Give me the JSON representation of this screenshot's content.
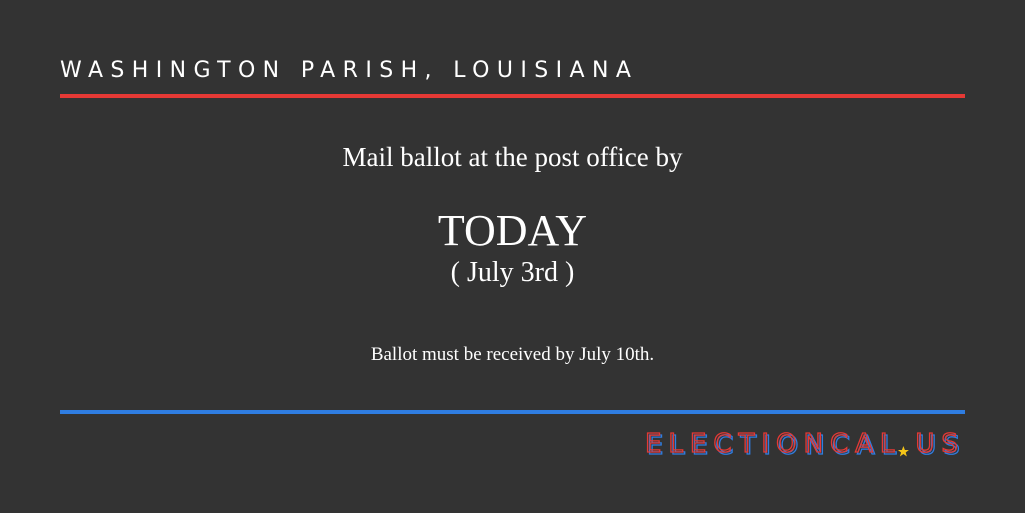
{
  "header": {
    "title": "WASHINGTON PARISH, LOUISIANA"
  },
  "message": {
    "lead": "Mail ballot at the post office by",
    "deadline": "TODAY",
    "date": "( July 3rd )",
    "note": "Ballot must be received by July 10th."
  },
  "footer": {
    "logo_main": "ELECTIONCAL",
    "logo_tld": "US"
  }
}
